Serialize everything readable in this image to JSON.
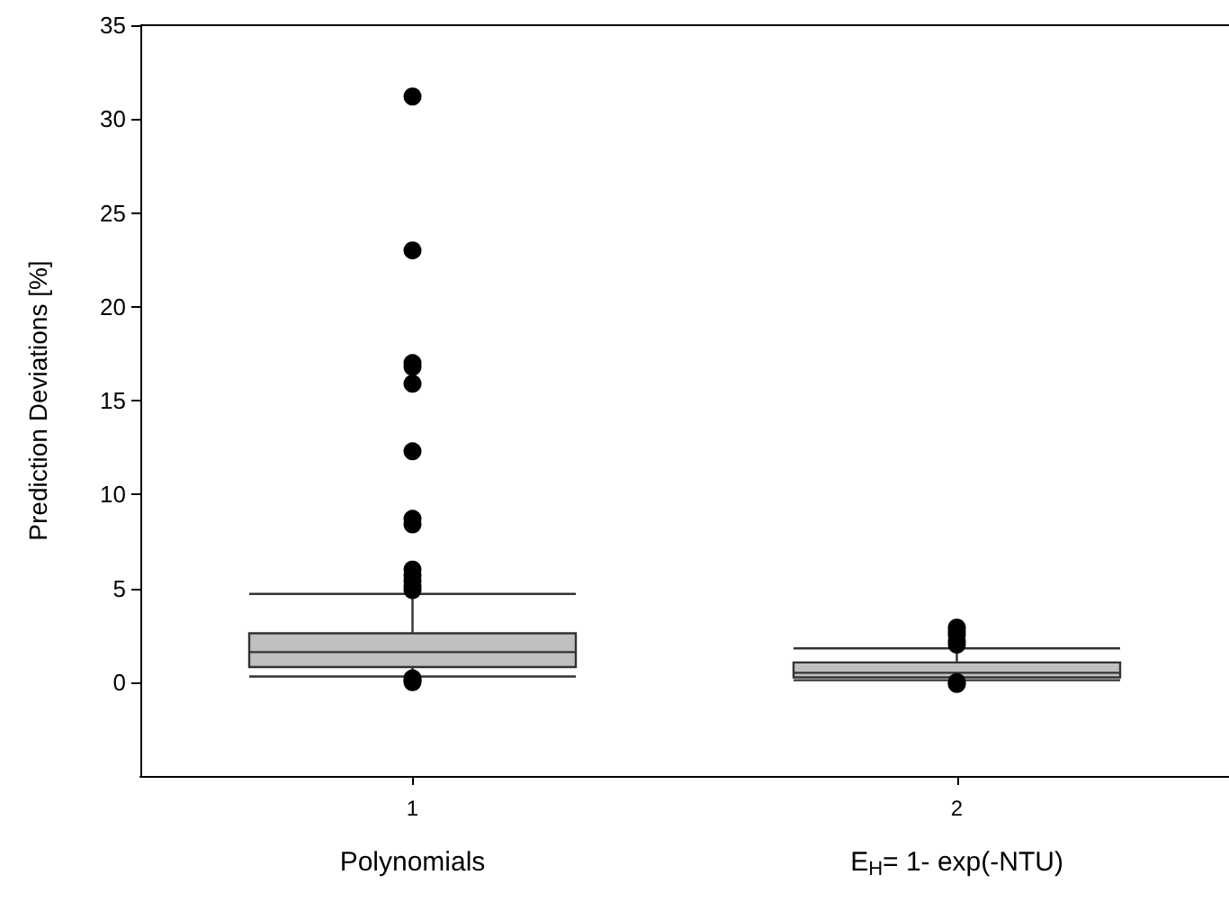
{
  "chart_data": {
    "type": "box",
    "ylabel": "Prediction Deviations [%]",
    "categories": [
      "1",
      "2"
    ],
    "ylim": [
      -5,
      35
    ],
    "yticks": [
      0,
      5,
      10,
      15,
      20,
      25,
      30,
      35
    ],
    "grid": false,
    "color": "#c0c0c0",
    "boxes": [
      {
        "low": 0.3,
        "q1": 0.8,
        "median": 1.6,
        "q3": 2.6,
        "high": 4.7,
        "outliers": [
          31.2,
          23,
          17,
          16.8,
          15.9,
          12.3,
          8.7,
          8.4,
          6,
          5.7,
          5.4,
          5.1,
          4.9,
          0.2,
          0.1,
          0
        ]
      },
      {
        "low": 0.1,
        "q1": 0.25,
        "median": 0.5,
        "q3": 1.05,
        "high": 1.8,
        "outliers": [
          2.9,
          2.7,
          2.5,
          2.2,
          2,
          0,
          -0.1
        ]
      }
    ],
    "annotations": [
      "Polynomials",
      "E$_{H}$= 1- exp(-NTU)"
    ]
  }
}
